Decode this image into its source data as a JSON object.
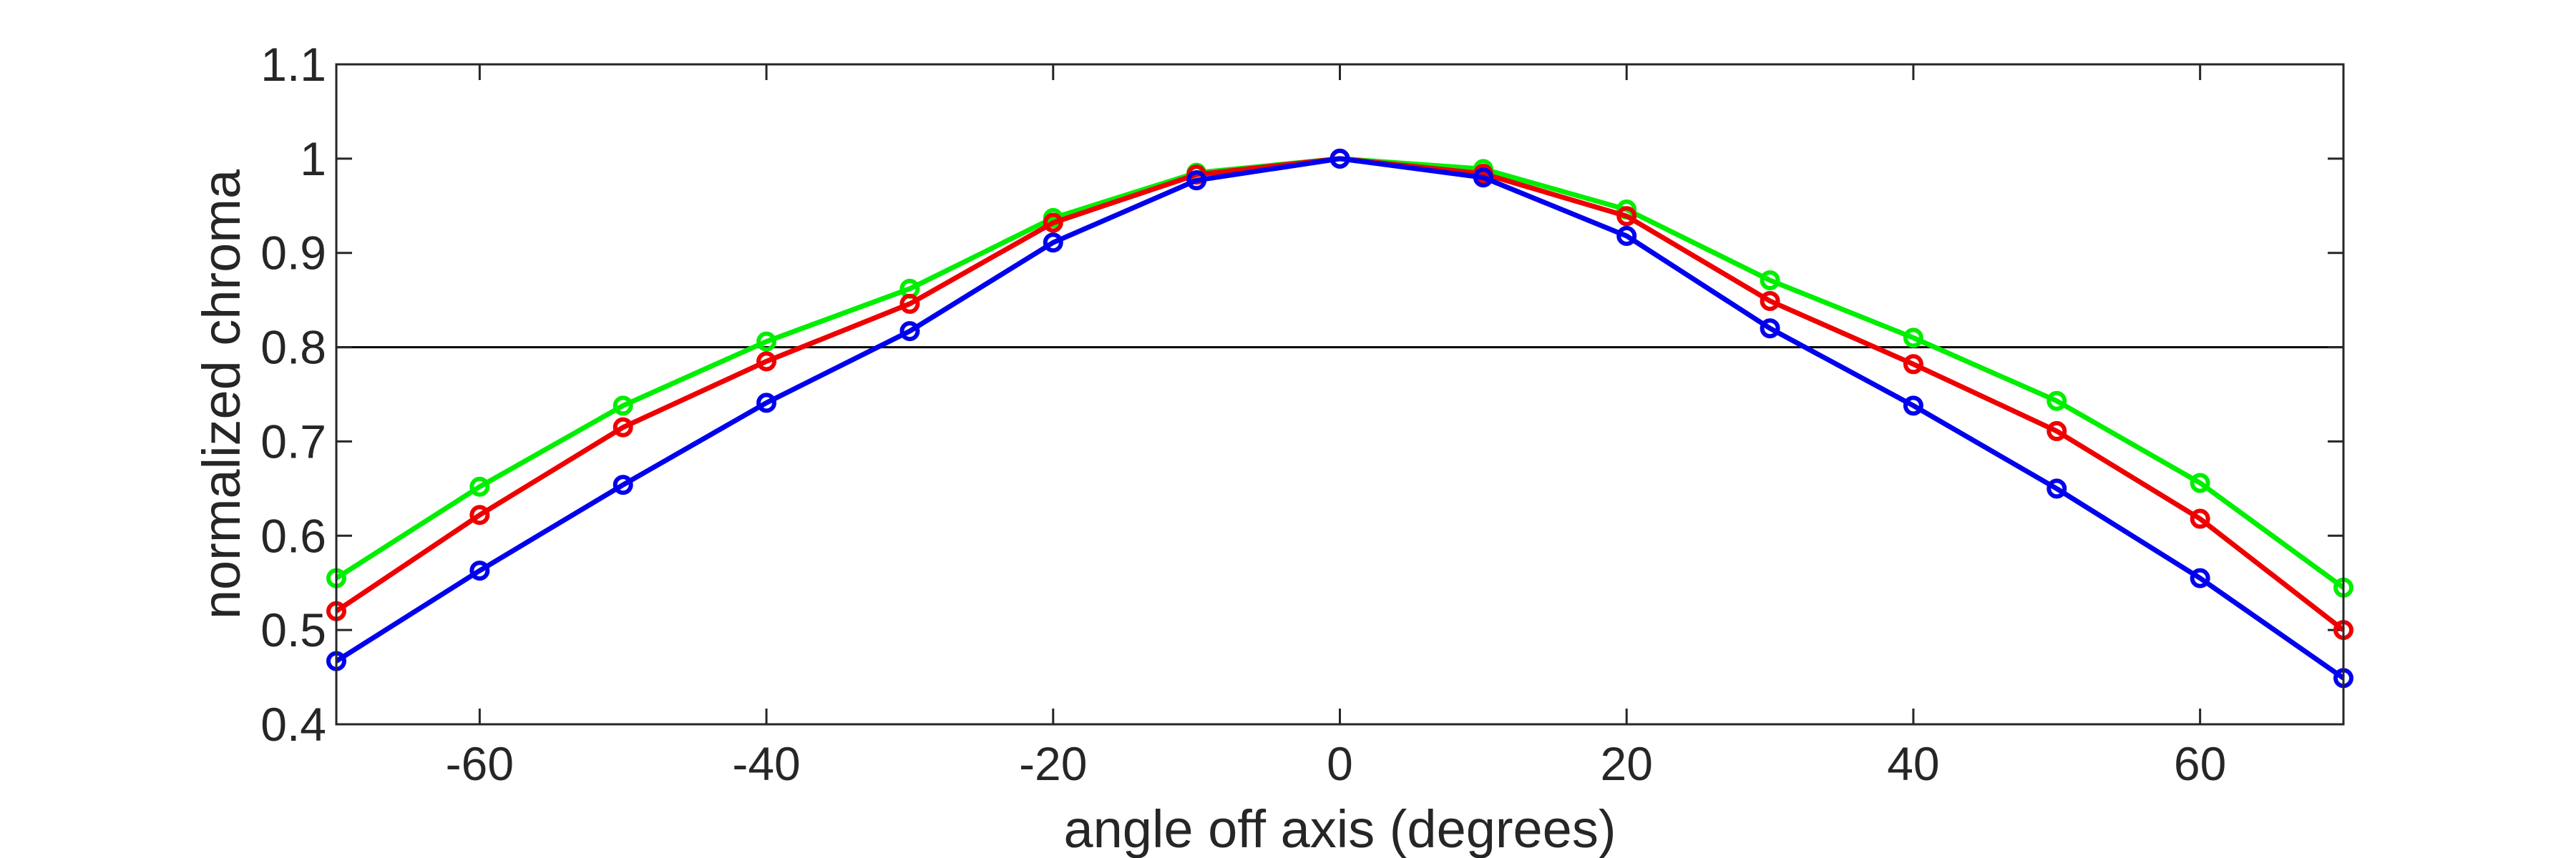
{
  "chart_data": {
    "type": "line",
    "title": "",
    "xlabel": "angle off axis (degrees)",
    "ylabel": "normalized chroma",
    "xlim": [
      -70,
      70
    ],
    "ylim": [
      0.4,
      1.1
    ],
    "xticks": [
      "-60",
      "-40",
      "-20",
      "0",
      "20",
      "40",
      "60"
    ],
    "yticks": [
      "0.4",
      "0.5",
      "0.6",
      "0.7",
      "0.8",
      "0.9",
      "1",
      "1.1"
    ],
    "grid": false,
    "legend": "none",
    "reference_line": {
      "y": 0.8,
      "color": "#000000"
    },
    "x": [
      -70,
      -60,
      -50,
      -40,
      -30,
      -20,
      -10,
      0,
      10,
      20,
      30,
      40,
      50,
      60,
      70
    ],
    "series": [
      {
        "color": "#00ee00",
        "values": [
          0.555,
          0.652,
          0.738,
          0.806,
          0.862,
          0.937,
          0.985,
          1.0,
          0.989,
          0.946,
          0.871,
          0.81,
          0.743,
          0.656,
          0.545
        ]
      },
      {
        "color": "#ee0000",
        "values": [
          0.52,
          0.622,
          0.715,
          0.785,
          0.846,
          0.932,
          0.983,
          1.0,
          0.984,
          0.939,
          0.849,
          0.782,
          0.711,
          0.618,
          0.5
        ]
      },
      {
        "color": "#0000ee",
        "values": [
          0.467,
          0.563,
          0.654,
          0.741,
          0.817,
          0.911,
          0.977,
          1.0,
          0.98,
          0.918,
          0.82,
          0.738,
          0.65,
          0.555,
          0.449
        ]
      }
    ]
  }
}
